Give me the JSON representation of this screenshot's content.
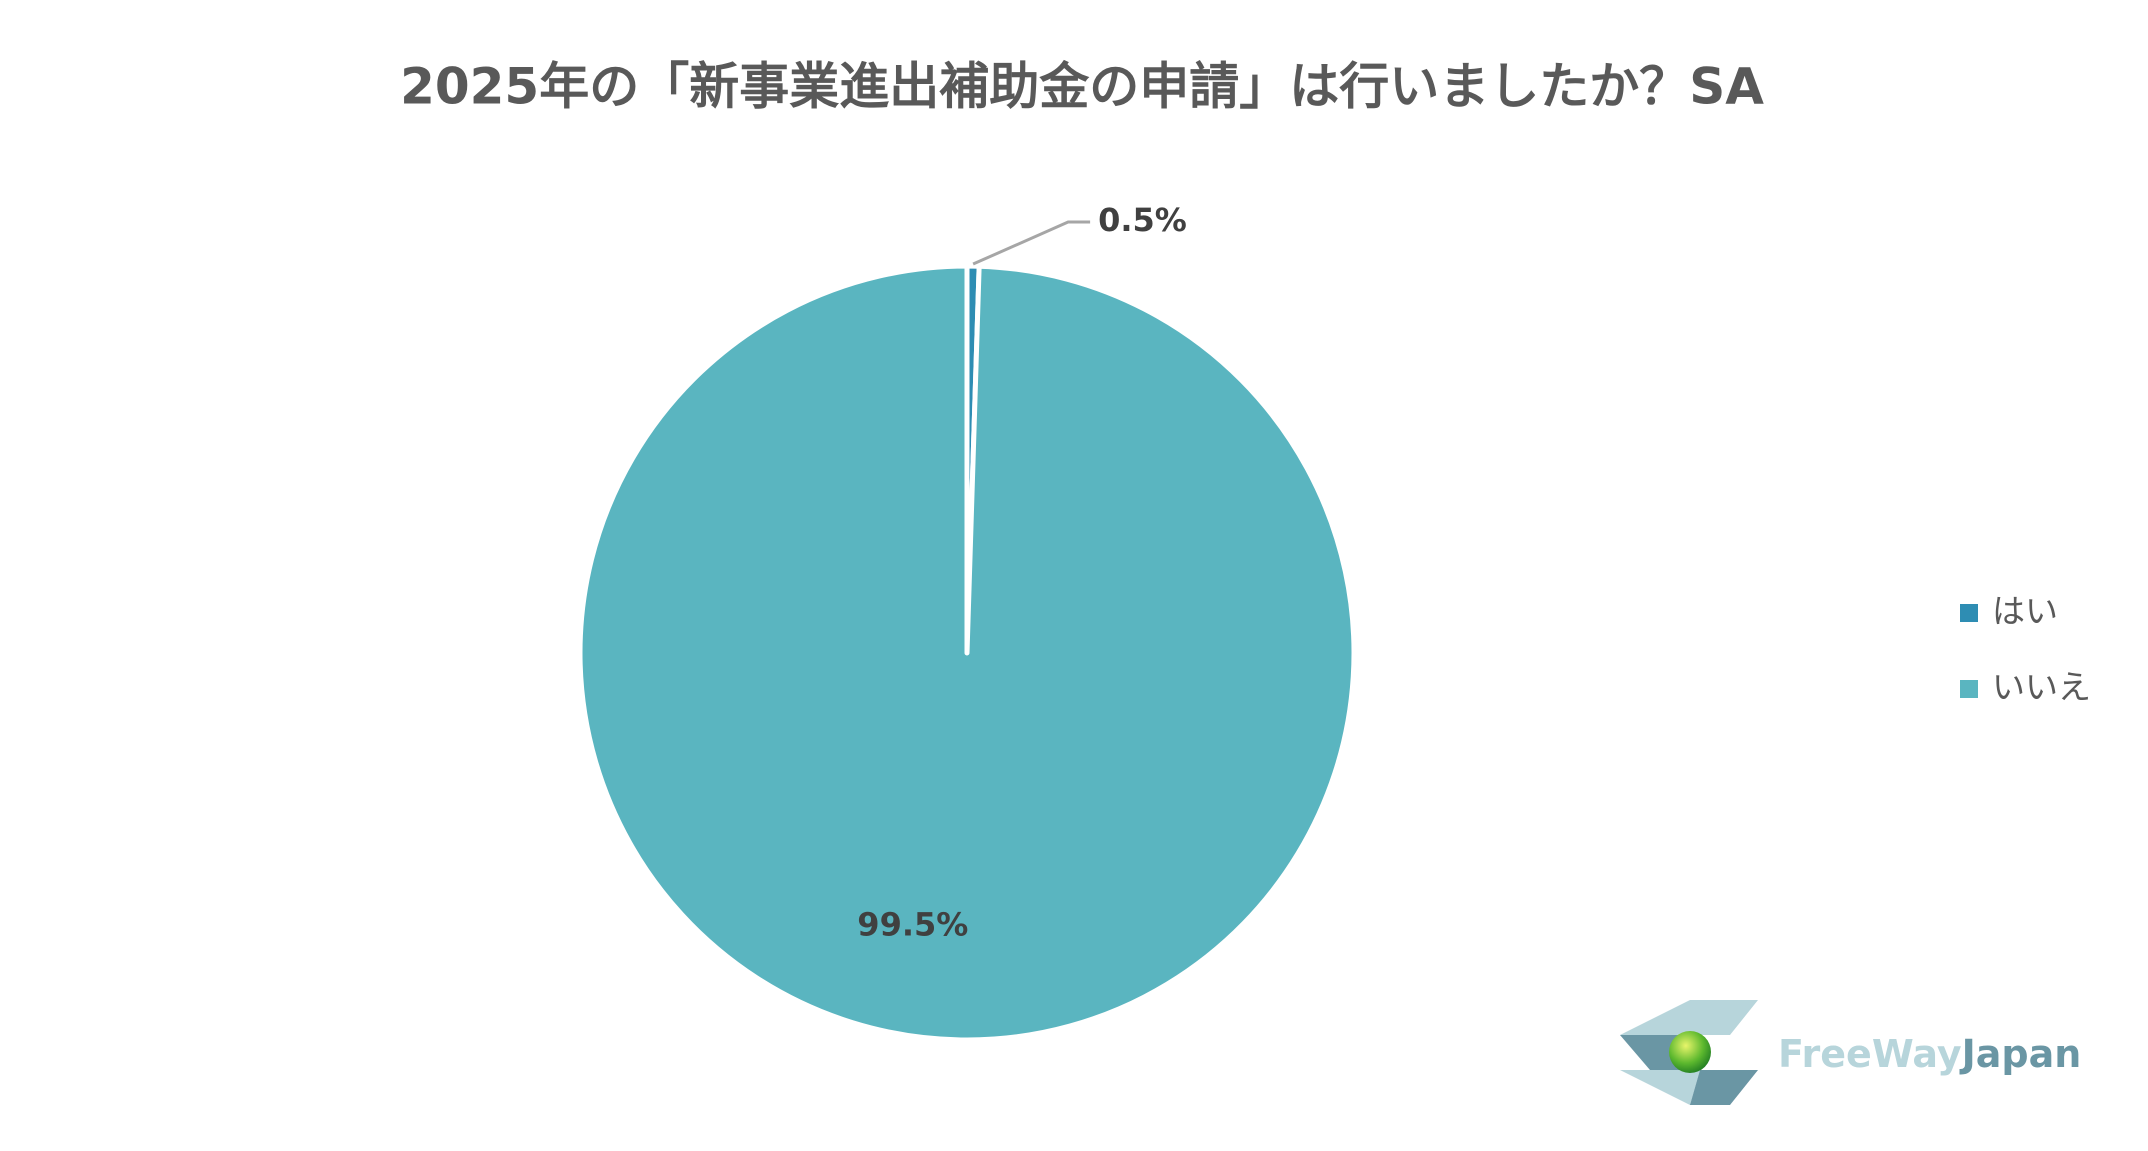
{
  "chart_data": {
    "type": "pie",
    "title": "2025年の「新事業進出補助金の申請」は行いましたか？SA",
    "categories": [
      "はい",
      "いいえ"
    ],
    "values": [
      0.5,
      99.5
    ],
    "value_labels": [
      "0.5%",
      "99.5%"
    ],
    "colors": [
      "#2e8db3",
      "#5ab5c0"
    ],
    "legend": "right"
  },
  "watermark": [
    "FreeWay",
    "Japan"
  ]
}
